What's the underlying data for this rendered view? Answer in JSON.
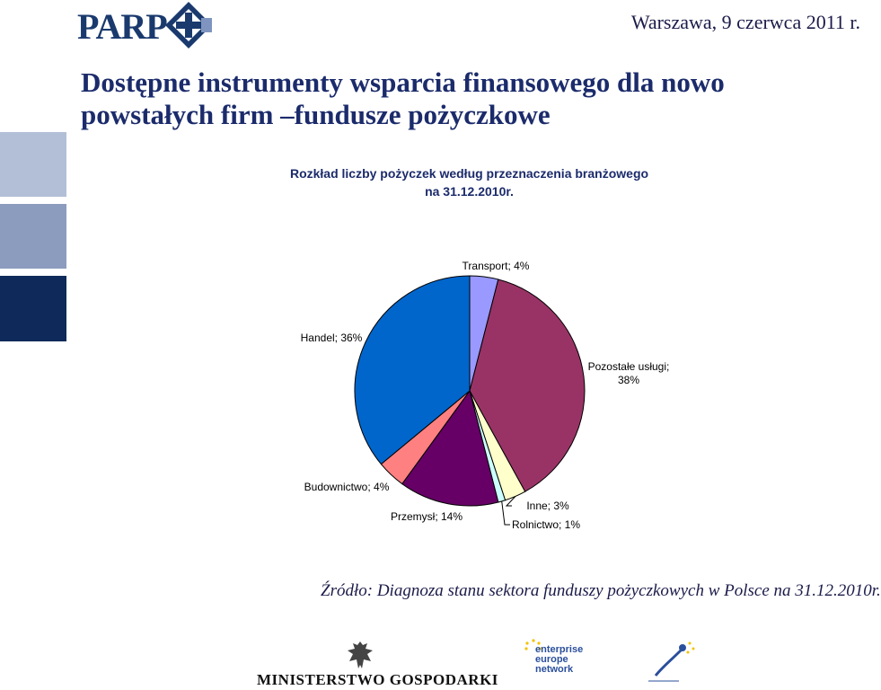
{
  "header": {
    "logo_text": "PARP",
    "date": "Warszawa, 9 czerwca 2011 r."
  },
  "title": "Dostępne instrumenty wsparcia finansowego dla nowo powstałych firm –fundusze pożyczkowe",
  "chart_data": {
    "type": "pie",
    "title_line1": "Rozkład liczby pożyczek według przeznaczenia branżowego",
    "title_line2": "na 31.12.2010r.",
    "slices": [
      {
        "label": "Transport; 4%",
        "name": "Transport",
        "value": 4,
        "color": "#9999ff"
      },
      {
        "label": "Pozostałe usługi;",
        "label2": "38%",
        "name": "Pozostałe usługi",
        "value": 38,
        "color": "#993366"
      },
      {
        "label": "Inne; 3%",
        "name": "Inne",
        "value": 3,
        "color": "#ffffcc"
      },
      {
        "label": "Rolnictwo; 1%",
        "name": "Rolnictwo",
        "value": 1,
        "color": "#ccffff"
      },
      {
        "label": "Przemysł; 14%",
        "name": "Przemysł",
        "value": 14,
        "color": "#660066"
      },
      {
        "label": "Budownictwo; 4%",
        "name": "Budownictwo",
        "value": 4,
        "color": "#ff8080"
      },
      {
        "label": "Handel; 36%",
        "name": "Handel",
        "value": 36,
        "color": "#0066cc"
      }
    ]
  },
  "source": "Źródło: Diagnoza stanu sektora funduszy pożyczkowych w Polsce na 31.12.2010r.",
  "footer": {
    "ministry": "MINISTERSTWO GOSPODARKI",
    "een_lines": [
      "enterprise",
      "europe",
      "network"
    ]
  },
  "colors": {
    "navy": "#1b2b6b",
    "side_light": "#b3bfd6",
    "side_mid": "#8c9cbe",
    "side_dark": "#0f2a5a"
  }
}
